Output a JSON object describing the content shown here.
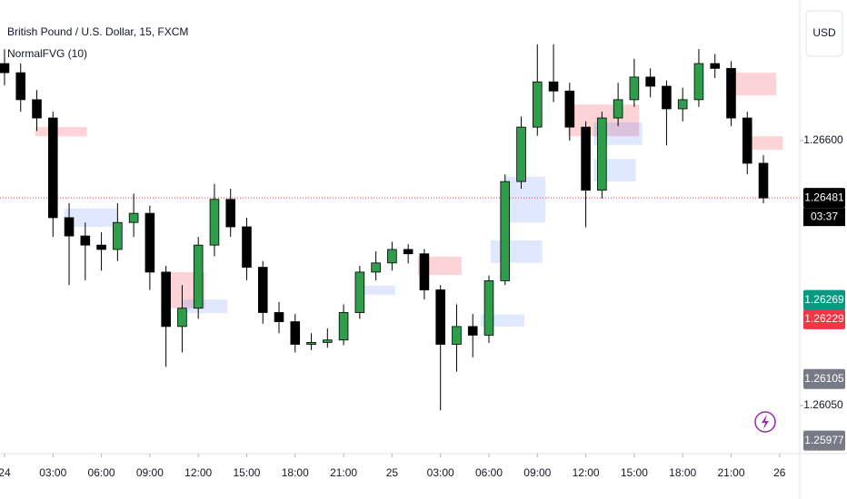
{
  "chart_data": {
    "type": "candlestick",
    "title": "British Pound / U.S. Dollar, 15, FXCM",
    "indicator": "NormalFVG (10)",
    "currency": "USD",
    "countdown": "03:37",
    "up_color": "#2e9e4a",
    "down_color": "#000000",
    "x": [
      0,
      1,
      2,
      3,
      4,
      5,
      6,
      7,
      8,
      9,
      10,
      11,
      12,
      13,
      14,
      15,
      16,
      17,
      18,
      19,
      20,
      21,
      22,
      23,
      24,
      25,
      26,
      27,
      28,
      29,
      30,
      31,
      32,
      33,
      34,
      35,
      36,
      37,
      38,
      39,
      40,
      41,
      42,
      43,
      44,
      45,
      46,
      47
    ],
    "open": [
      1.2676,
      1.26741,
      1.26685,
      1.26647,
      1.2644,
      1.26402,
      1.26383,
      1.26374,
      1.2643,
      1.26449,
      1.26327,
      1.26214,
      1.26252,
      1.26383,
      1.26478,
      1.26421,
      1.26337,
      1.26243,
      1.26224,
      1.26177,
      1.26181,
      1.26186,
      1.26243,
      1.26327,
      1.26346,
      1.26374,
      1.26365,
      1.2629,
      1.26177,
      1.26214,
      1.26196,
      1.26309,
      1.26515,
      1.26628,
      1.26722,
      1.26703,
      1.26628,
      1.26497,
      1.26647,
      1.26685,
      1.26732,
      1.26713,
      1.26666,
      1.26685,
      1.2676,
      1.2675,
      1.26647,
      1.26553
    ],
    "high": [
      1.2679,
      1.2676,
      1.26705,
      1.2666,
      1.2647,
      1.2643,
      1.2641,
      1.2647,
      1.2649,
      1.26465,
      1.2634,
      1.263,
      1.264,
      1.2651,
      1.265,
      1.2644,
      1.2635,
      1.26265,
      1.2624,
      1.262,
      1.2621,
      1.2626,
      1.2634,
      1.2637,
      1.2639,
      1.26385,
      1.26375,
      1.263,
      1.2626,
      1.2624,
      1.2632,
      1.2653,
      1.2665,
      1.268,
      1.268,
      1.2672,
      1.2664,
      1.2666,
      1.2672,
      1.2677,
      1.2675,
      1.26725,
      1.2671,
      1.2679,
      1.2678,
      1.26765,
      1.2666,
      1.2657
    ],
    "low": [
      1.26715,
      1.2666,
      1.2662,
      1.264,
      1.263,
      1.2631,
      1.2633,
      1.2635,
      1.264,
      1.2629,
      1.2613,
      1.2616,
      1.2623,
      1.2636,
      1.264,
      1.2631,
      1.2622,
      1.262,
      1.2616,
      1.26165,
      1.2617,
      1.26175,
      1.2623,
      1.2631,
      1.2633,
      1.26345,
      1.2627,
      1.2604,
      1.2612,
      1.2615,
      1.2618,
      1.263,
      1.265,
      1.2661,
      1.2668,
      1.266,
      1.2642,
      1.2648,
      1.2663,
      1.2667,
      1.2669,
      1.2659,
      1.2664,
      1.2667,
      1.2673,
      1.2663,
      1.2653,
      1.2647
    ],
    "close": [
      1.26741,
      1.26685,
      1.26647,
      1.2644,
      1.26402,
      1.26383,
      1.26374,
      1.2643,
      1.26449,
      1.26327,
      1.26214,
      1.26252,
      1.26383,
      1.26478,
      1.26421,
      1.26337,
      1.26243,
      1.26224,
      1.26177,
      1.26181,
      1.26186,
      1.26243,
      1.26327,
      1.26346,
      1.26374,
      1.26365,
      1.2629,
      1.26177,
      1.26214,
      1.26196,
      1.26309,
      1.26515,
      1.26628,
      1.26722,
      1.26703,
      1.26628,
      1.26497,
      1.26647,
      1.26685,
      1.26732,
      1.26713,
      1.26666,
      1.26685,
      1.2676,
      1.2675,
      1.26647,
      1.26553,
      1.26481
    ],
    "zones": [
      {
        "x": [
          1.9,
          5.1
        ],
        "y": [
          1.26609,
          1.26628
        ],
        "color": "rgba(242,54,69,0.22)"
      },
      {
        "x": [
          3.7,
          7
        ],
        "y": [
          1.26421,
          1.26459
        ],
        "color": "rgba(41,98,255,0.15)"
      },
      {
        "x": [
          9.9,
          12.4
        ],
        "y": [
          1.26252,
          1.26327
        ],
        "color": "rgba(242,54,69,0.22)"
      },
      {
        "x": [
          11,
          13.8
        ],
        "y": [
          1.26242,
          1.2627
        ],
        "color": "rgba(41,98,255,0.15)"
      },
      {
        "x": [
          21.7,
          24.2
        ],
        "y": [
          1.2628,
          1.26299
        ],
        "color": "rgba(41,98,255,0.15)"
      },
      {
        "x": [
          25.6,
          28.3
        ],
        "y": [
          1.26321,
          1.26359
        ],
        "color": "rgba(242,54,69,0.22)"
      },
      {
        "x": [
          29.5,
          32.2
        ],
        "y": [
          1.26214,
          1.26239
        ],
        "color": "rgba(41,98,255,0.15)"
      },
      {
        "x": [
          30.1,
          33.3
        ],
        "y": [
          1.26346,
          1.26393
        ],
        "color": "rgba(41,98,255,0.15)"
      },
      {
        "x": [
          31,
          33.5
        ],
        "y": [
          1.2643,
          1.26525
        ],
        "color": "rgba(41,98,255,0.15)"
      },
      {
        "x": [
          34.9,
          39.3
        ],
        "y": [
          1.26609,
          1.26675
        ],
        "color": "rgba(242,54,69,0.22)"
      },
      {
        "x": [
          36.5,
          39.5
        ],
        "y": [
          1.26591,
          1.26638
        ],
        "color": "rgba(41,98,255,0.15)"
      },
      {
        "x": [
          36.5,
          39.1
        ],
        "y": [
          1.26515,
          1.26562
        ],
        "color": "rgba(41,98,255,0.15)"
      },
      {
        "x": [
          44.7,
          47.8
        ],
        "y": [
          1.26694,
          1.26741
        ],
        "color": "rgba(242,54,69,0.22)"
      },
      {
        "x": [
          46.1,
          48.2
        ],
        "y": [
          1.26581,
          1.26609
        ],
        "color": "rgba(242,54,69,0.22)"
      }
    ],
    "xlim": [
      -0.28,
      49.25
    ],
    "ylim": [
      1.2595,
      1.26892
    ],
    "xticks": [
      {
        "value": 0,
        "label": "24"
      },
      {
        "value": 3,
        "label": "03:00"
      },
      {
        "value": 6,
        "label": "06:00"
      },
      {
        "value": 9,
        "label": "09:00"
      },
      {
        "value": 12,
        "label": "12:00"
      },
      {
        "value": 15,
        "label": "15:00"
      },
      {
        "value": 18,
        "label": "18:00"
      },
      {
        "value": 21,
        "label": "21:00"
      },
      {
        "value": 24,
        "label": "25"
      },
      {
        "value": 27,
        "label": "03:00"
      },
      {
        "value": 30,
        "label": "06:00"
      },
      {
        "value": 33,
        "label": "09:00"
      },
      {
        "value": 36,
        "label": "12:00"
      },
      {
        "value": 39,
        "label": "15:00"
      },
      {
        "value": 42,
        "label": "18:00"
      },
      {
        "value": 45,
        "label": "21:00"
      },
      {
        "value": 48,
        "label": "26"
      }
    ],
    "yticks": [
      {
        "value": 1.266,
        "label": "1.26600"
      },
      {
        "value": 1.2605,
        "label": "1.26050"
      }
    ],
    "price_labels": [
      {
        "value": 1.26481,
        "color": "#000000"
      },
      {
        "value": 1.26269,
        "color": "#089981"
      },
      {
        "value": 1.26229,
        "color": "#f23645"
      },
      {
        "value": 1.26105,
        "color": "#787b86"
      },
      {
        "value": 1.25977,
        "color": "#787b86"
      }
    ],
    "last_line_color": "#f23645"
  }
}
